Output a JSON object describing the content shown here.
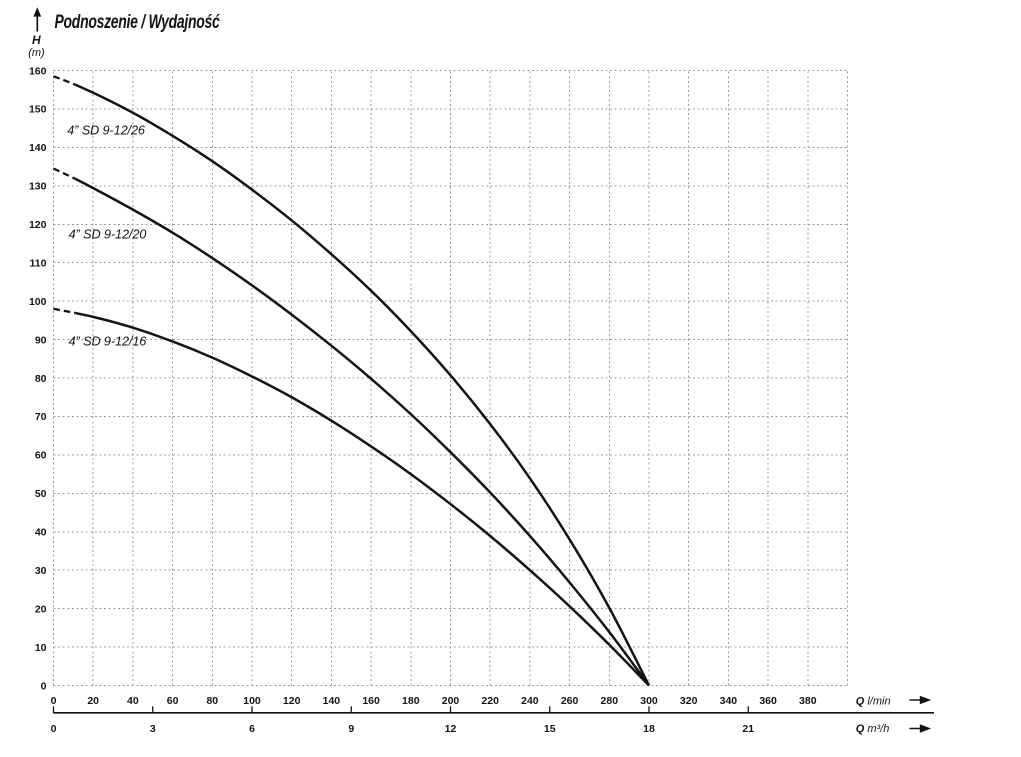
{
  "chart_data": {
    "type": "line",
    "title": "Podnoszenie / Wydajność",
    "y_axis": {
      "symbol": "H",
      "unit": "(m)",
      "min": 0,
      "max": 160,
      "tick_step": 10,
      "tick_labels": [
        "0",
        "10",
        "20",
        "30",
        "40",
        "50",
        "60",
        "70",
        "80",
        "90",
        "100",
        "110",
        "120",
        "130",
        "140",
        "150",
        "160"
      ]
    },
    "x_axis_primary": {
      "symbol": "Q",
      "unit": "l/min",
      "min": 0,
      "max": 400,
      "tick_step": 20,
      "tick_labels": [
        "0",
        "20",
        "40",
        "60",
        "80",
        "100",
        "120",
        "140",
        "160",
        "180",
        "200",
        "220",
        "240",
        "260",
        "280",
        "300",
        "320",
        "340",
        "360",
        "380"
      ]
    },
    "x_axis_secondary": {
      "symbol": "Q",
      "unit": "m³/h",
      "tick_values_m3h": [
        0,
        3,
        6,
        9,
        12,
        15,
        18,
        21
      ],
      "tick_labels": [
        "0",
        "3",
        "6",
        "9",
        "12",
        "15",
        "18",
        "21"
      ],
      "lmin_per_m3h": 16.6667
    },
    "grid": {
      "on": true,
      "x_step": 20,
      "y_step": 10
    },
    "series": [
      {
        "name": "4” SD 9-12/26",
        "solid_from": 1,
        "points_q_h": [
          [
            0,
            158.5
          ],
          [
            11,
            156.3
          ],
          [
            20,
            154.2
          ],
          [
            40,
            149.0
          ],
          [
            60,
            143.0
          ],
          [
            80,
            136.4
          ],
          [
            100,
            129.0
          ],
          [
            120,
            121.0
          ],
          [
            140,
            112.2
          ],
          [
            160,
            102.7
          ],
          [
            180,
            92.2
          ],
          [
            200,
            80.7
          ],
          [
            220,
            68.0
          ],
          [
            240,
            53.9
          ],
          [
            260,
            38.0
          ],
          [
            280,
            20.2
          ],
          [
            300,
            0
          ]
        ],
        "label_at_q_h": [
          6.9,
          143.3
        ]
      },
      {
        "name": "4” SD 9-12/20",
        "solid_from": 1,
        "points_q_h": [
          [
            0,
            134.5
          ],
          [
            11,
            131.8
          ],
          [
            20,
            129.4
          ],
          [
            40,
            123.8
          ],
          [
            60,
            117.8
          ],
          [
            80,
            111.2
          ],
          [
            100,
            104.1
          ],
          [
            120,
            96.5
          ],
          [
            140,
            88.4
          ],
          [
            160,
            79.8
          ],
          [
            180,
            70.6
          ],
          [
            200,
            60.7
          ],
          [
            220,
            50.2
          ],
          [
            240,
            38.9
          ],
          [
            260,
            26.8
          ],
          [
            280,
            13.9
          ],
          [
            300,
            0
          ]
        ],
        "label_at_q_h": [
          7.6,
          116.3
        ]
      },
      {
        "name": "4” SD 9-12/16",
        "solid_from": 1,
        "points_q_h": [
          [
            0,
            98.0
          ],
          [
            11,
            96.9
          ],
          [
            20,
            95.9
          ],
          [
            40,
            93.1
          ],
          [
            60,
            89.5
          ],
          [
            80,
            85.3
          ],
          [
            100,
            80.4
          ],
          [
            120,
            75.0
          ],
          [
            140,
            68.9
          ],
          [
            160,
            62.2
          ],
          [
            180,
            55.0
          ],
          [
            200,
            47.2
          ],
          [
            220,
            38.9
          ],
          [
            240,
            30.0
          ],
          [
            260,
            20.6
          ],
          [
            280,
            10.6
          ],
          [
            300,
            0
          ]
        ],
        "label_at_q_h": [
          7.6,
          88.4
        ]
      }
    ],
    "colors": {
      "curve": "#141414",
      "grid": "#9c9c9c",
      "text": "#141414",
      "axis_line": "#141414"
    }
  }
}
